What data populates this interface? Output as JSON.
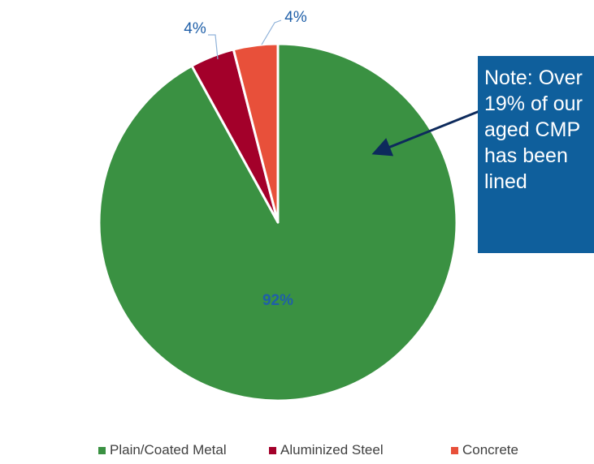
{
  "chart_data": {
    "type": "pie",
    "categories": [
      "Plain/Coated Metal",
      "Aluminized Steel",
      "Concrete"
    ],
    "values": [
      92,
      4,
      4
    ],
    "labels": [
      "92%",
      "4%",
      "4%"
    ],
    "colors": [
      "#3a9142",
      "#a3002a",
      "#e8503a"
    ],
    "title": "",
    "start_angle_deg": 0,
    "direction": "clockwise",
    "legend_position": "bottom"
  },
  "note": {
    "text": "Note: Over\n19% of our\naged CMP\nhas been\nlined"
  },
  "colors": {
    "label_blue": "#1f5fa8",
    "note_background": "#0f5f9c",
    "arrow": "#0d2a5c"
  }
}
